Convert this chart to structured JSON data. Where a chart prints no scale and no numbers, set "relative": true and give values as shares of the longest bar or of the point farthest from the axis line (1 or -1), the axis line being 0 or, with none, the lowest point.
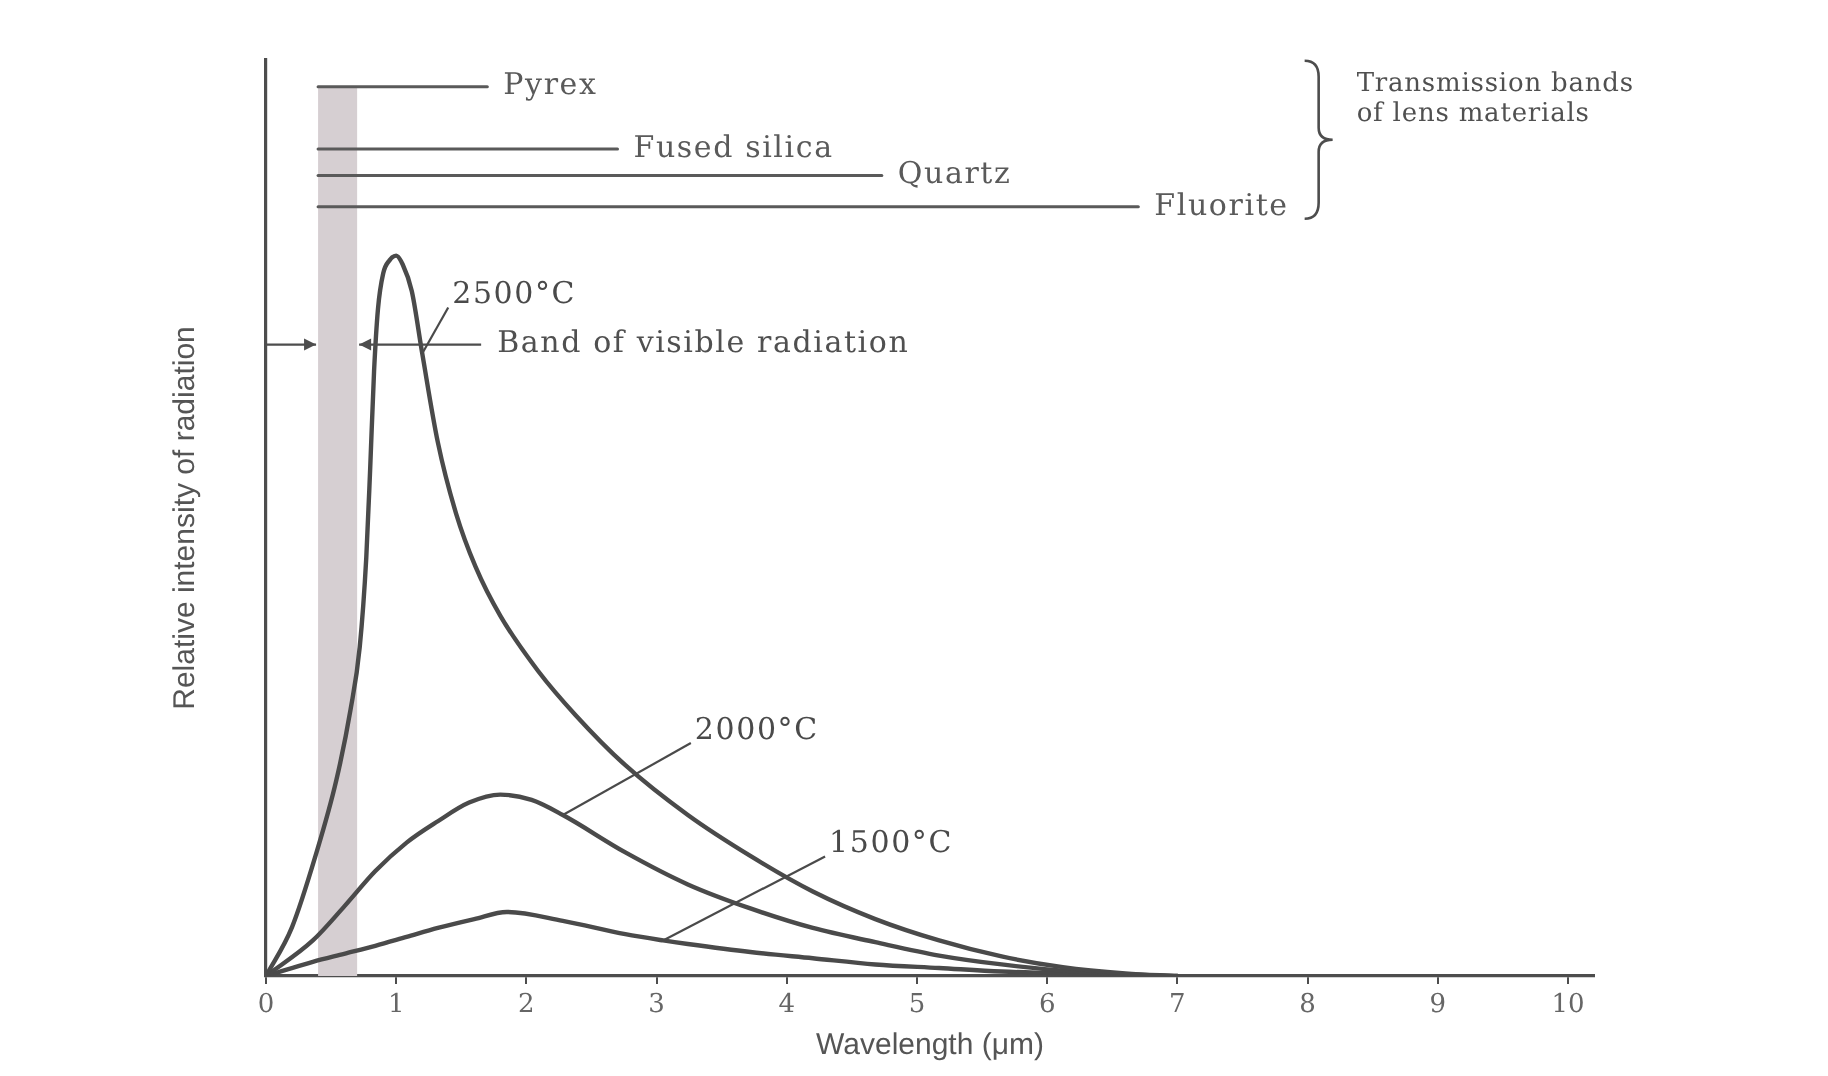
{
  "chart_data": {
    "type": "line",
    "xlabel": "Wavelength (μm)",
    "ylabel": "Relative intensity of radiation",
    "relative": true,
    "xlim": [
      0,
      10.2
    ],
    "xticks": [
      0,
      1,
      2,
      3,
      4,
      5,
      6,
      7,
      8,
      9,
      10
    ],
    "grid": false,
    "legend": false,
    "marker": "none",
    "line_style": "solid",
    "tick_labels": "x",
    "series": [
      {
        "name": "2500°C",
        "color": "#4a4a4a",
        "x": [
          0,
          0.2,
          0.38,
          0.54,
          0.65,
          0.72,
          0.77,
          0.8,
          0.83,
          0.86,
          0.9,
          0.95,
          1.0,
          1.05,
          1.12,
          1.2,
          1.32,
          1.46,
          1.61,
          1.8,
          2.09,
          2.38,
          2.76,
          3.24,
          3.72,
          4.2,
          4.68,
          5.17,
          5.65,
          6.12,
          6.6,
          7.0
        ],
        "values": [
          0,
          0.055,
          0.135,
          0.22,
          0.3,
          0.37,
          0.47,
          0.57,
          0.68,
          0.75,
          0.79,
          0.805,
          0.81,
          0.8,
          0.77,
          0.7,
          0.6,
          0.52,
          0.46,
          0.405,
          0.343,
          0.293,
          0.237,
          0.181,
          0.135,
          0.095,
          0.064,
          0.04,
          0.022,
          0.01,
          0.003,
          0
        ]
      },
      {
        "name": "2000°C",
        "color": "#4a4a4a",
        "x": [
          0,
          0.36,
          0.6,
          0.84,
          1.08,
          1.32,
          1.56,
          1.8,
          2.04,
          2.28,
          2.76,
          3.24,
          3.72,
          4.2,
          4.68,
          5.17,
          5.65,
          6.12,
          6.6,
          7.0
        ],
        "values": [
          0,
          0.04,
          0.078,
          0.118,
          0.15,
          0.174,
          0.195,
          0.204,
          0.198,
          0.181,
          0.139,
          0.103,
          0.076,
          0.054,
          0.038,
          0.023,
          0.013,
          0.006,
          0.002,
          0
        ]
      },
      {
        "name": "1500°C",
        "color": "#4a4a4a",
        "x": [
          0,
          0.36,
          0.6,
          0.84,
          1.08,
          1.32,
          1.6,
          1.85,
          2.28,
          2.76,
          3.05,
          3.24,
          3.72,
          4.2,
          4.68,
          5.17,
          5.65,
          6.12,
          6.6
        ],
        "values": [
          0,
          0.016,
          0.025,
          0.034,
          0.044,
          0.054,
          0.064,
          0.072,
          0.062,
          0.047,
          0.04,
          0.036,
          0.027,
          0.02,
          0.013,
          0.009,
          0.005,
          0.003,
          0
        ]
      },
      {
        "name": "Pyrex",
        "color": "#5a5a5a",
        "x": [
          0.4,
          1.7
        ],
        "values": [
          1,
          1
        ]
      },
      {
        "name": "Fused silica",
        "color": "#5a5a5a",
        "x": [
          0.4,
          2.7
        ],
        "values": [
          0.93,
          0.93
        ]
      },
      {
        "name": "Quartz",
        "color": "#5a5a5a",
        "x": [
          0.4,
          4.73
        ],
        "values": [
          0.9,
          0.9
        ]
      },
      {
        "name": "Fluorite",
        "color": "#5a5a5a",
        "x": [
          0.4,
          6.7
        ],
        "values": [
          0.865,
          0.865
        ]
      }
    ],
    "bands": [
      {
        "axis": "x",
        "from": 0.4,
        "to": 0.7,
        "label": "Band of visible radiation",
        "color": "#d6cfd2"
      }
    ],
    "annotations": [
      "Transmission bands of lens materials"
    ]
  }
}
